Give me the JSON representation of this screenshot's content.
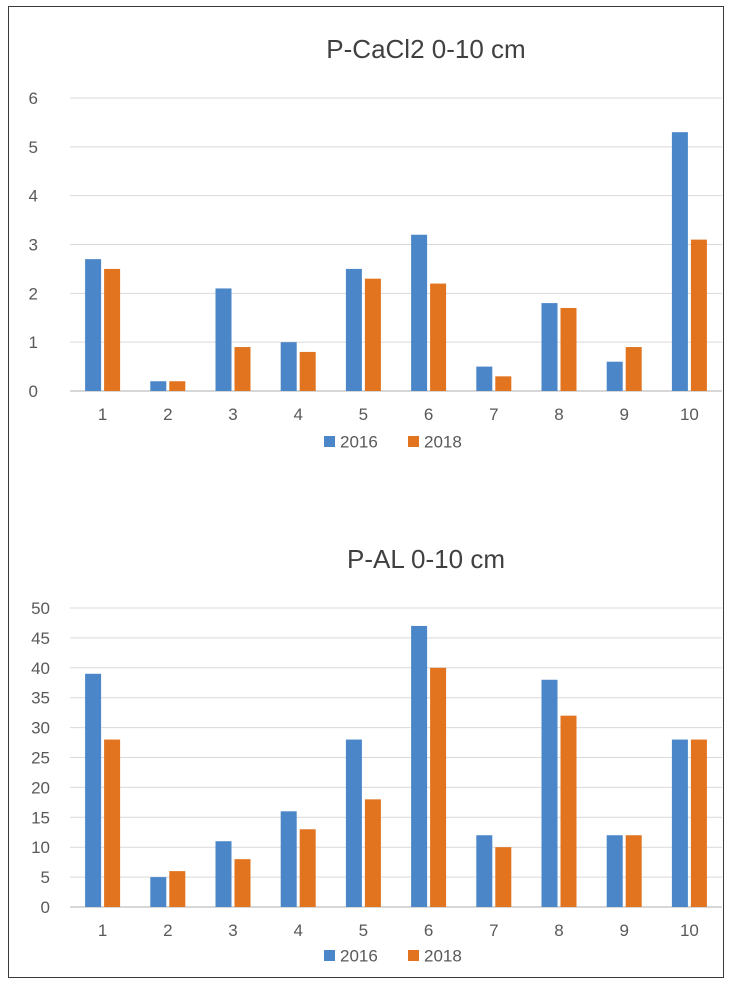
{
  "chart_data": [
    {
      "type": "bar",
      "title": "P-CaCl2 0-10 cm",
      "xlabel": "",
      "ylabel": "",
      "categories": [
        "1",
        "2",
        "3",
        "4",
        "5",
        "6",
        "7",
        "8",
        "9",
        "10"
      ],
      "series": [
        {
          "name": "2016",
          "color": "#4a86c8",
          "values": [
            2.7,
            0.2,
            2.1,
            1.0,
            2.5,
            3.2,
            0.5,
            1.8,
            0.6,
            5.3
          ]
        },
        {
          "name": "2018",
          "color": "#e2731f",
          "values": [
            2.5,
            0.2,
            0.9,
            0.8,
            2.3,
            2.2,
            0.3,
            1.7,
            0.9,
            3.1
          ]
        }
      ],
      "ylim": [
        0,
        6
      ],
      "yticks": [
        "0",
        "1",
        "2",
        "3",
        "4",
        "5",
        "6"
      ],
      "grid": true,
      "legend": "bottom"
    },
    {
      "type": "bar",
      "title": "P-AL 0-10 cm",
      "xlabel": "",
      "ylabel": "",
      "categories": [
        "1",
        "2",
        "3",
        "4",
        "5",
        "6",
        "7",
        "8",
        "9",
        "10"
      ],
      "series": [
        {
          "name": "2016",
          "color": "#4a86c8",
          "values": [
            39,
            5,
            11,
            16,
            28,
            47,
            12,
            38,
            12,
            28
          ]
        },
        {
          "name": "2018",
          "color": "#e2731f",
          "values": [
            28,
            6,
            8,
            13,
            18,
            40,
            10,
            32,
            12,
            28
          ]
        }
      ],
      "ylim": [
        0,
        50
      ],
      "yticks": [
        "0",
        "5",
        "10",
        "15",
        "20",
        "25",
        "30",
        "35",
        "40",
        "45",
        "50"
      ],
      "grid": true,
      "legend": "bottom"
    }
  ]
}
